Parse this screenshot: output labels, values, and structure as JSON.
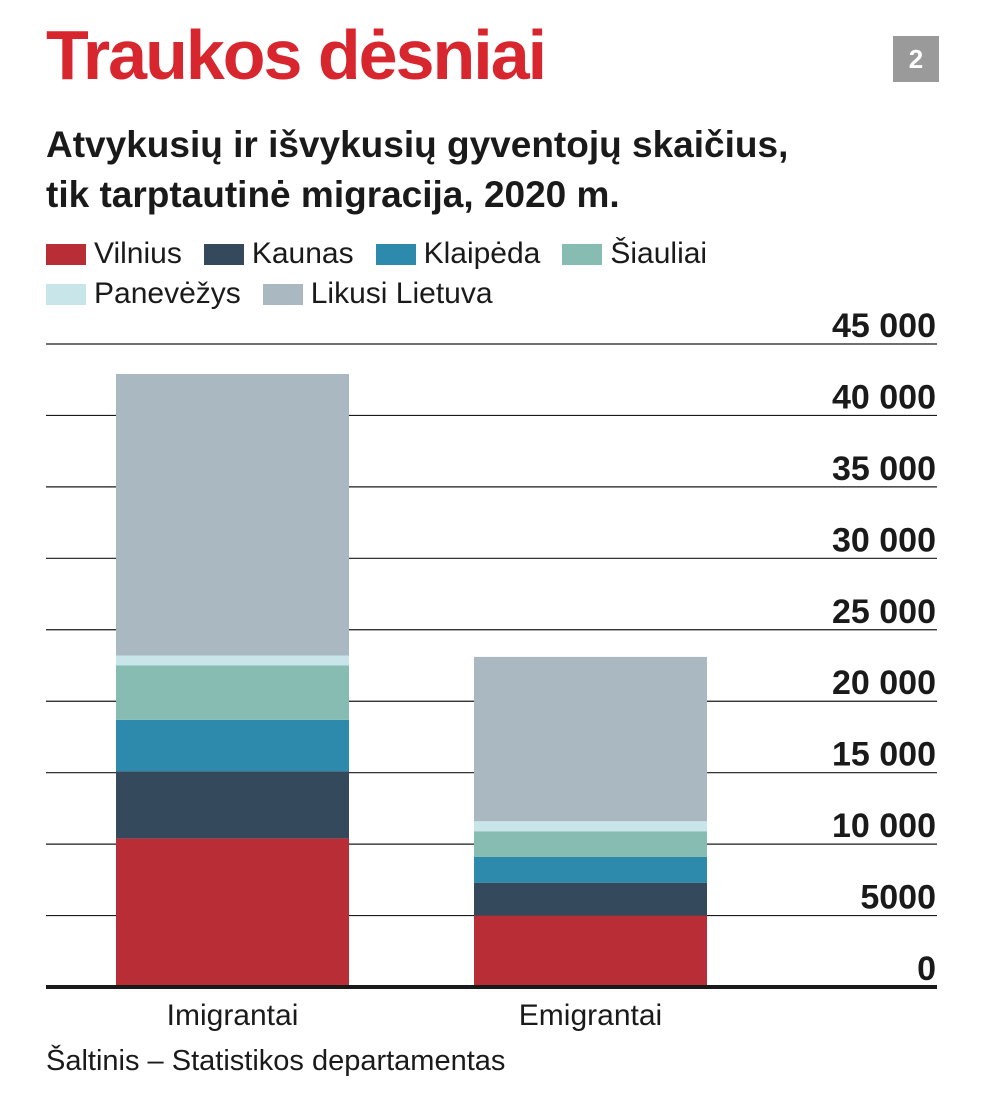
{
  "header": {
    "title": "Traukos dėsniai",
    "badge": "2",
    "subtitle_line1": "Atvykusių ir išvykusių gyventojų skaičius,",
    "subtitle_line2": "tik tarptautinė migracija, 2020 m."
  },
  "legend": [
    {
      "label": "Vilnius",
      "color": "#b82d36"
    },
    {
      "label": "Kaunas",
      "color": "#344a5c"
    },
    {
      "label": "Klaipėda",
      "color": "#2d8aac"
    },
    {
      "label": "Šiauliai",
      "color": "#86bcb2"
    },
    {
      "label": "Panevėžys",
      "color": "#c8e6ea"
    },
    {
      "label": "Likusi Lietuva",
      "color": "#aab9c1"
    }
  ],
  "source": "Šaltinis – Statistikos departamentas",
  "chart_data": {
    "type": "bar",
    "stacked": true,
    "categories": [
      "Imigrantai",
      "Emigrantai"
    ],
    "ylim": [
      0,
      45000
    ],
    "yticks": [
      0,
      5000,
      10000,
      15000,
      20000,
      25000,
      30000,
      35000,
      40000,
      45000
    ],
    "ytick_labels": [
      "0",
      "5000",
      "10 000",
      "15 000",
      "20 000",
      "25 000",
      "30 000",
      "35 000",
      "40 000",
      "45 000"
    ],
    "grid": true,
    "legend_position": "top",
    "series": [
      {
        "name": "Vilnius",
        "color": "#b82d36",
        "values": [
          10400,
          5000
        ]
      },
      {
        "name": "Kaunas",
        "color": "#344a5c",
        "values": [
          4700,
          2300
        ]
      },
      {
        "name": "Klaipėda",
        "color": "#2d8aac",
        "values": [
          3600,
          1800
        ]
      },
      {
        "name": "Šiauliai",
        "color": "#86bcb2",
        "values": [
          3800,
          1800
        ]
      },
      {
        "name": "Panevėžys",
        "color": "#c8e6ea",
        "values": [
          700,
          700
        ]
      },
      {
        "name": "Likusi Lietuva",
        "color": "#aab9c1",
        "values": [
          19700,
          11500
        ]
      }
    ]
  }
}
